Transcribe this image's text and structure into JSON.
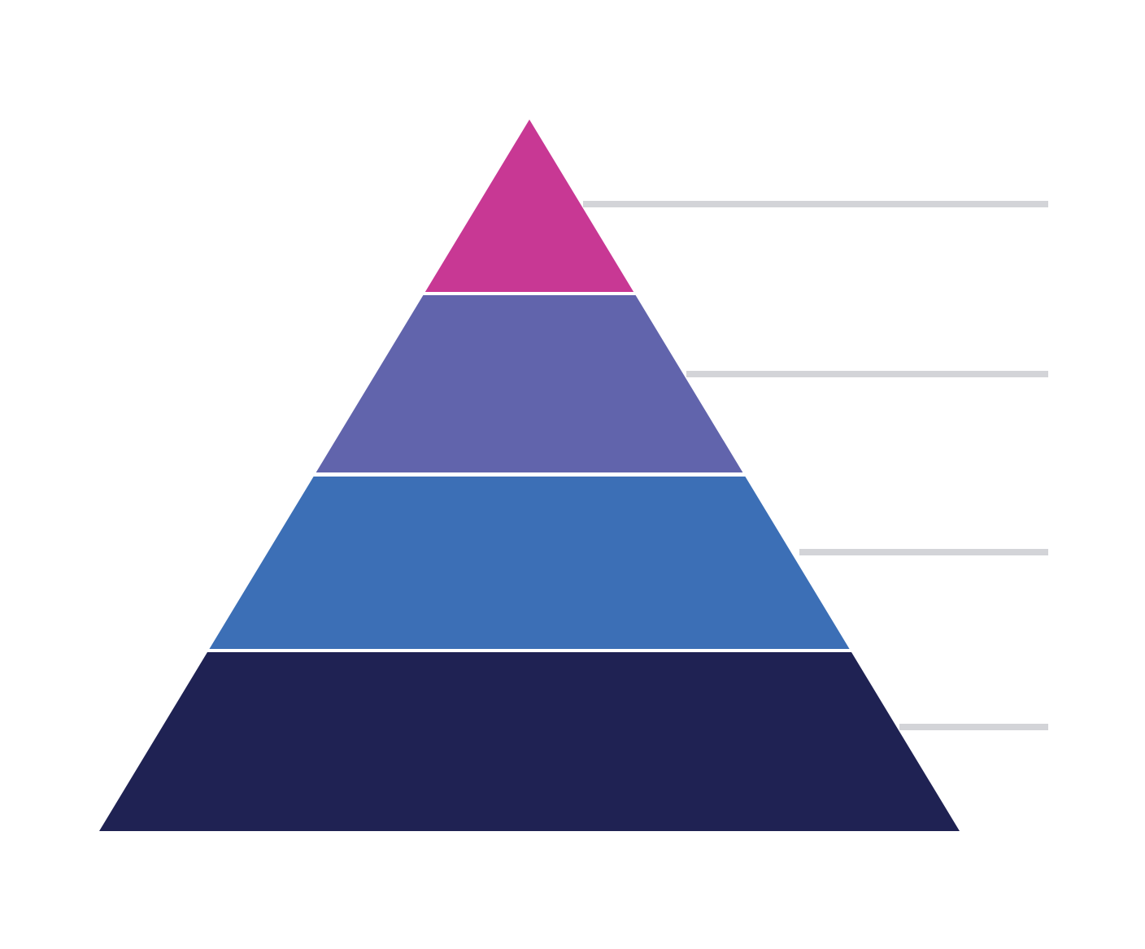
{
  "diagram": {
    "type": "pyramid",
    "layers": [
      {
        "level": 1,
        "color": "#c83894"
      },
      {
        "level": 2,
        "color": "#6164ac"
      },
      {
        "level": 3,
        "color": "#3c6fb6"
      },
      {
        "level": 4,
        "color": "#1f2253"
      }
    ],
    "connector_color": "#d3d4d8",
    "background": "#ffffff"
  }
}
